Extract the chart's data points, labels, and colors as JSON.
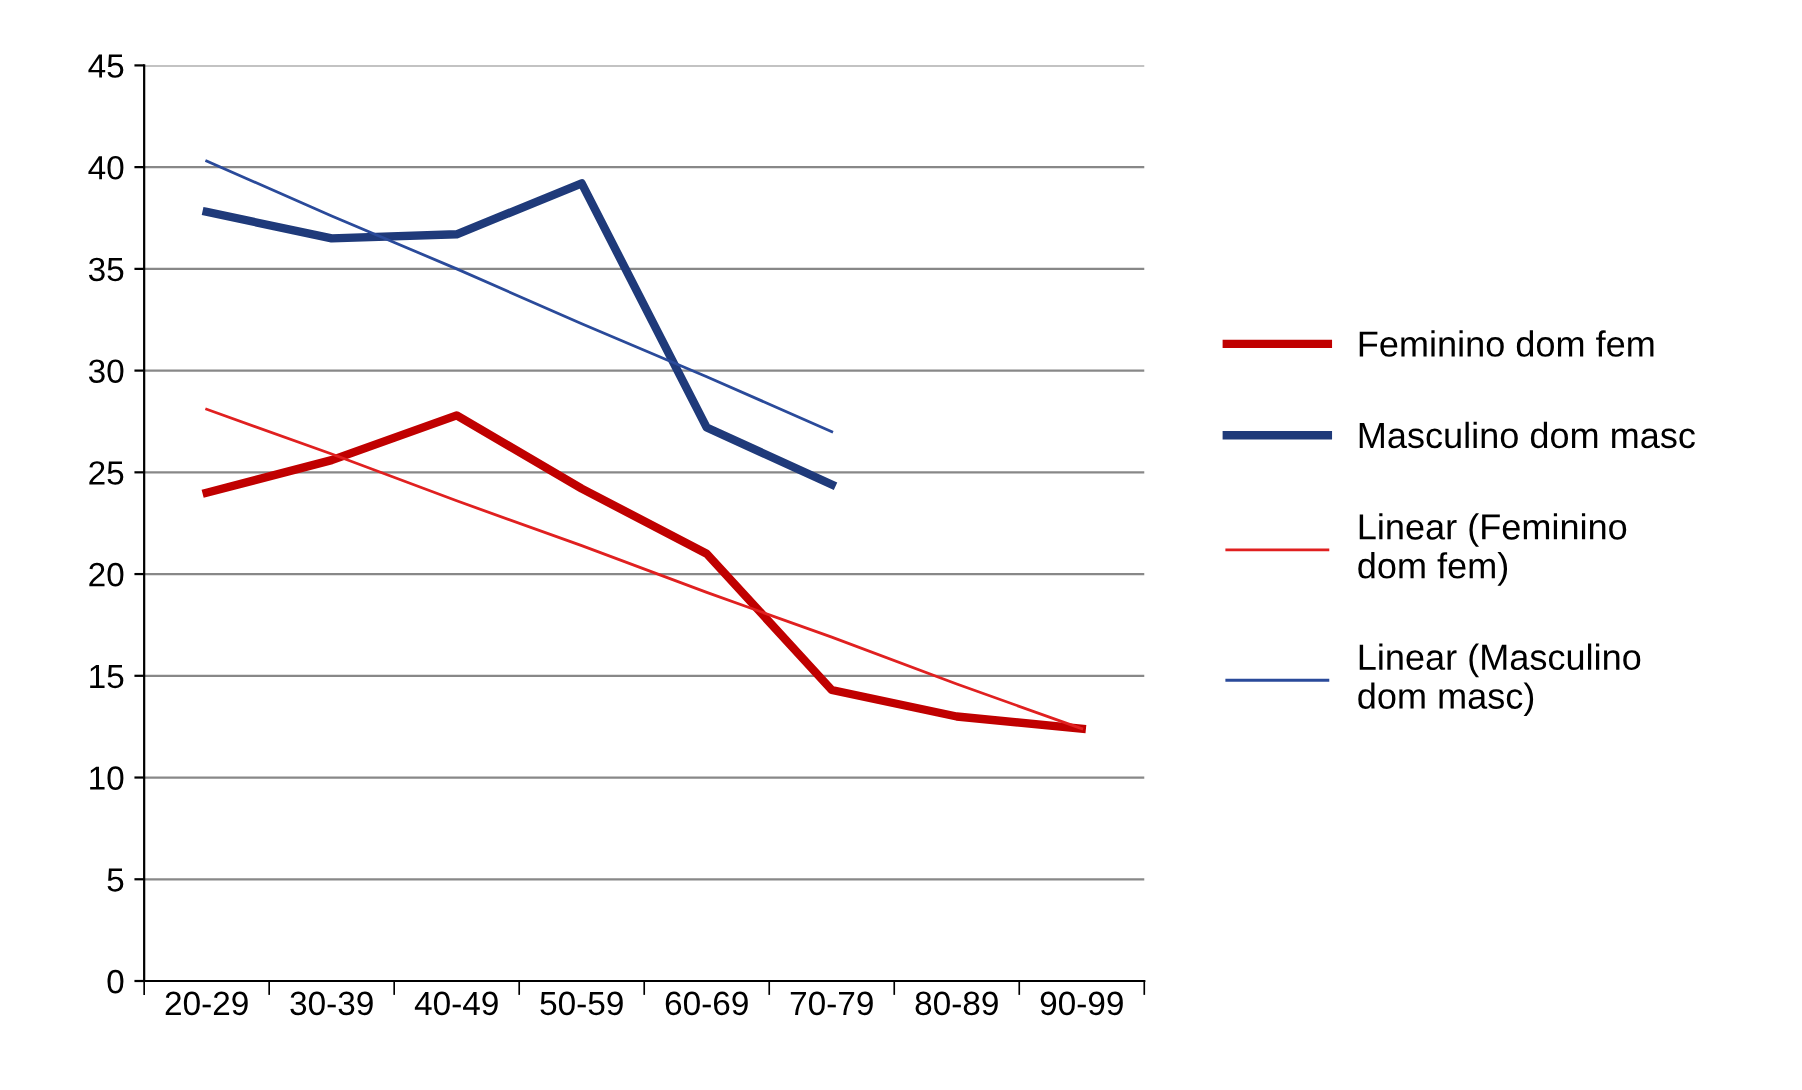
{
  "chart_data": {
    "type": "line",
    "categories": [
      "20-29",
      "30-39",
      "40-49",
      "50-59",
      "60-69",
      "70-79",
      "80-89",
      "90-99"
    ],
    "series": [
      {
        "name": "Feminino dom fem",
        "color": "#c00000",
        "values": [
          24.0,
          25.6,
          27.8,
          24.2,
          21.0,
          14.3,
          13.0,
          12.4
        ]
      },
      {
        "name": "Masculino dom masc",
        "color": "#1f3a7a",
        "values": [
          37.8,
          36.5,
          36.7,
          39.2,
          27.2,
          24.4,
          null,
          null
        ]
      },
      {
        "name": "Linear (Feminino dom fem)",
        "color": "#e02020",
        "values": [
          28.1,
          25.9,
          23.6,
          21.4,
          19.1,
          16.9,
          14.6,
          12.4
        ]
      },
      {
        "name": "Linear (Masculino dom masc)",
        "color": "#2a4a9a",
        "values": [
          40.3,
          37.6,
          35.0,
          32.3,
          29.7,
          27.0,
          null,
          null
        ]
      }
    ],
    "ylim": [
      0,
      45
    ],
    "yticks": [
      0,
      5,
      10,
      15,
      20,
      25,
      30,
      35,
      40,
      45
    ],
    "grid": "y",
    "legend": "right",
    "marker": "none",
    "line_style": "solid"
  }
}
